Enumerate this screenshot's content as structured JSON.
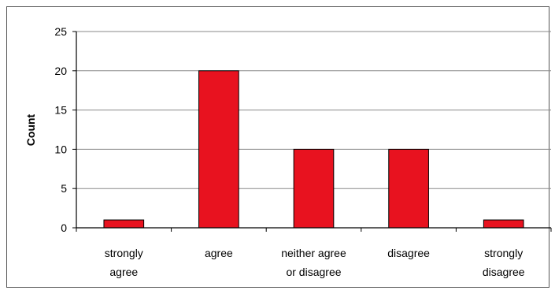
{
  "chart_data": {
    "type": "bar",
    "title": "",
    "xlabel": "",
    "ylabel": "Count",
    "ylim": [
      0,
      25
    ],
    "yticks": [
      0,
      5,
      10,
      15,
      20,
      25
    ],
    "grid": true,
    "legend": "none",
    "bar_color": "#e8121f",
    "categories": [
      [
        "strongly",
        "agree"
      ],
      [
        "agree"
      ],
      [
        "neither agree",
        "or disagree"
      ],
      [
        "disagree"
      ],
      [
        "strongly",
        "disagree"
      ]
    ],
    "values": [
      1,
      20,
      10,
      10,
      1
    ]
  }
}
